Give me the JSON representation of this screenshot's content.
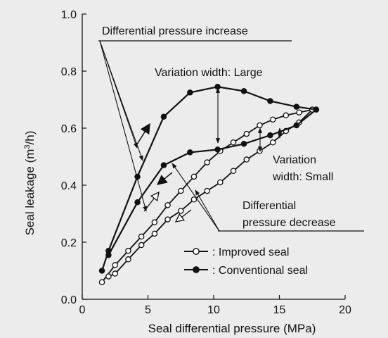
{
  "chart_data": {
    "type": "line",
    "xlabel": "Seal differential pressure (MPa)",
    "ylabel_main": "Seal leakage (m",
    "ylabel_sup": "3",
    "ylabel_tail": "/h)",
    "xlim": [
      0,
      20
    ],
    "ylim": [
      0,
      1.0
    ],
    "x_ticks": [
      0,
      5,
      10,
      15,
      20
    ],
    "y_ticks": [
      0.0,
      0.2,
      0.4,
      0.6,
      0.8,
      1.0
    ],
    "x_tick_labels": [
      "0",
      "5",
      "10",
      "15",
      "20"
    ],
    "y_tick_labels": [
      "0.0",
      "0.2",
      "0.4",
      "0.6",
      "0.8",
      "1.0"
    ],
    "grid": false,
    "legend_position": "bottom-right",
    "series": [
      {
        "name": ": Improved seal",
        "marker": "open-circle",
        "increase": {
          "x": [
            1.5,
            2.5,
            3.5,
            4.5,
            5.5,
            6.5,
            7.5,
            8.5,
            9.5,
            10.5,
            11.5,
            12.5,
            13.5,
            14.5,
            15.5,
            16.5,
            17.5
          ],
          "y": [
            0.06,
            0.12,
            0.17,
            0.22,
            0.27,
            0.33,
            0.38,
            0.43,
            0.48,
            0.52,
            0.55,
            0.58,
            0.61,
            0.63,
            0.645,
            0.655,
            0.665
          ]
        },
        "decrease": {
          "x": [
            17.5,
            16.5,
            15.5,
            14.5,
            13.5,
            12.5,
            11.5,
            10.5,
            9.5,
            8.5,
            7.5,
            6.5,
            5.5,
            4.5,
            3.5,
            2.5,
            2.0
          ],
          "y": [
            0.665,
            0.62,
            0.59,
            0.55,
            0.52,
            0.49,
            0.45,
            0.41,
            0.38,
            0.35,
            0.31,
            0.28,
            0.23,
            0.19,
            0.14,
            0.09,
            0.08
          ]
        }
      },
      {
        "name": ": Conventional seal",
        "marker": "filled-circle",
        "increase": {
          "x": [
            1.5,
            2.0,
            4.2,
            6.2,
            8.2,
            10.3,
            12.3,
            14.3,
            16.3,
            17.8
          ],
          "y": [
            0.1,
            0.17,
            0.43,
            0.64,
            0.725,
            0.745,
            0.73,
            0.695,
            0.675,
            0.665
          ]
        },
        "decrease": {
          "x": [
            17.8,
            16.3,
            14.3,
            12.3,
            10.3,
            8.2,
            6.2,
            4.2,
            2.0
          ],
          "y": [
            0.665,
            0.61,
            0.575,
            0.545,
            0.525,
            0.515,
            0.47,
            0.34,
            0.155
          ]
        }
      }
    ],
    "annotations": {
      "increase": "Differential pressure increase",
      "var_large": "Variation width: Large",
      "var_small_1": "Variation",
      "var_small_2": "width: Small",
      "decrease_1": "Differential",
      "decrease_2": "pressure decrease"
    }
  }
}
